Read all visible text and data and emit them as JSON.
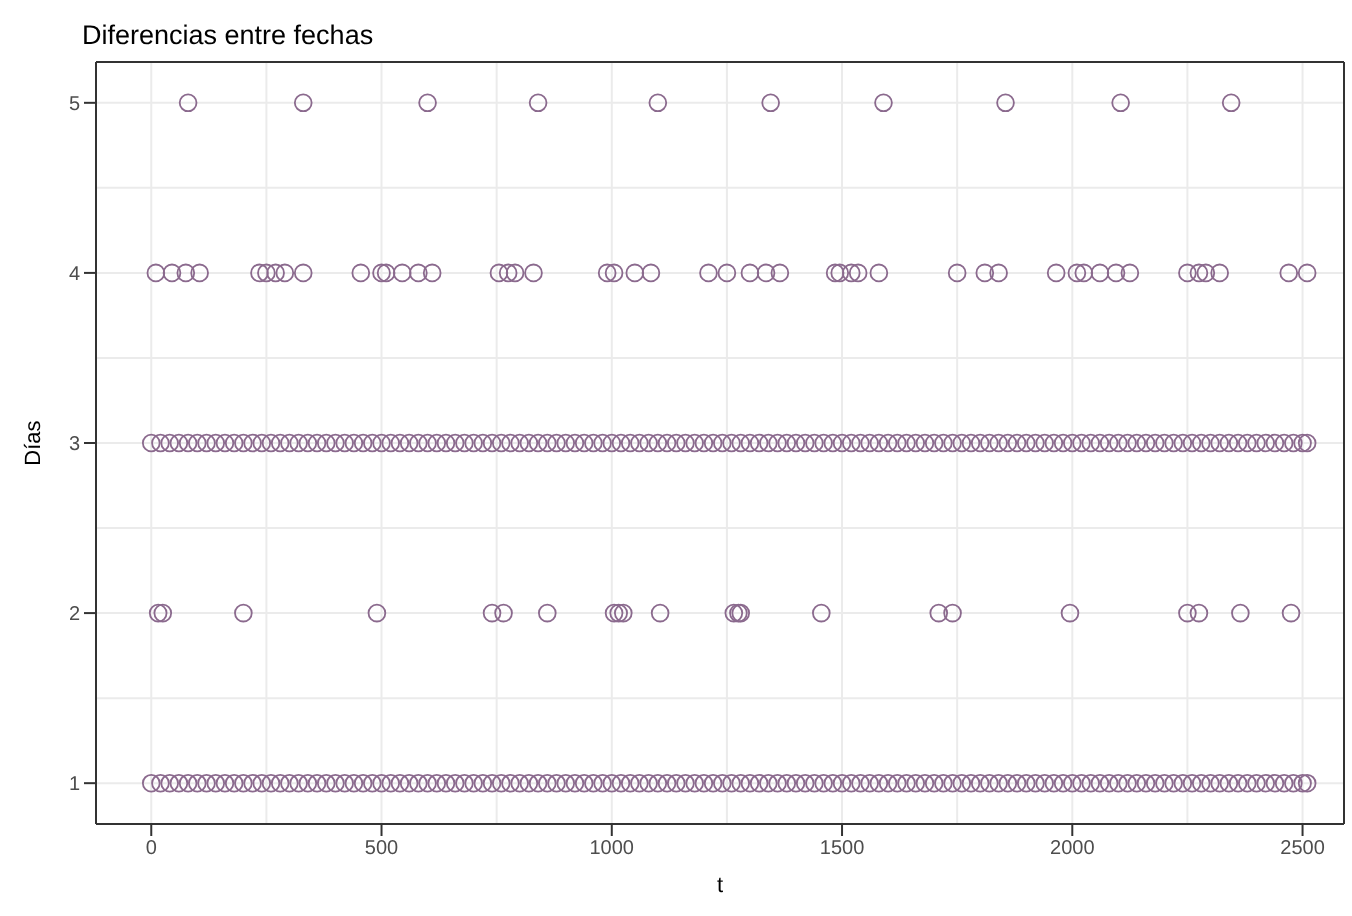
{
  "chart_data": {
    "type": "scatter",
    "title": "Diferencias entre fechas",
    "xlabel": "t",
    "ylabel": "Días",
    "xlim": [
      -120,
      2590
    ],
    "xticks": [
      0,
      500,
      1000,
      1500,
      2000,
      2500
    ],
    "ylim": [
      0.76,
      5.24
    ],
    "yticks": [
      1,
      2,
      3,
      4,
      5
    ],
    "grid": true,
    "marker": "circle",
    "legend": false,
    "series": [
      {
        "color": "#8b6a8e",
        "x": [
          80,
          330,
          600,
          840,
          1100,
          1345,
          1590,
          1855,
          2105,
          2345
        ],
        "values": [
          5,
          5,
          5,
          5,
          5,
          5,
          5,
          5,
          5,
          5
        ]
      },
      {
        "color": "#8b6a8e",
        "x": [
          10,
          45,
          75,
          105,
          235,
          250,
          270,
          290,
          330,
          455,
          500,
          510,
          545,
          580,
          610,
          755,
          775,
          790,
          830,
          990,
          1005,
          1050,
          1085,
          1210,
          1250,
          1300,
          1335,
          1365,
          1485,
          1495,
          1520,
          1535,
          1580,
          1750,
          1810,
          1840,
          1965,
          2010,
          2025,
          2060,
          2095,
          2125,
          2250,
          2275,
          2290,
          2320,
          2470,
          2510
        ],
        "values": [
          4,
          4,
          4,
          4,
          4,
          4,
          4,
          4,
          4,
          4,
          4,
          4,
          4,
          4,
          4,
          4,
          4,
          4,
          4,
          4,
          4,
          4,
          4,
          4,
          4,
          4,
          4,
          4,
          4,
          4,
          4,
          4,
          4,
          4,
          4,
          4,
          4,
          4,
          4,
          4,
          4,
          4,
          4,
          4,
          4,
          4,
          4,
          4
        ]
      },
      {
        "color": "#8b6a8e",
        "x": [
          15,
          25,
          200,
          490,
          740,
          765,
          860,
          1005,
          1015,
          1025,
          1105,
          1265,
          1275,
          1280,
          1455,
          1710,
          1740,
          1995,
          2250,
          2275,
          2365,
          2475
        ],
        "values": [
          2,
          2,
          2,
          2,
          2,
          2,
          2,
          2,
          2,
          2,
          2,
          2,
          2,
          2,
          2,
          2,
          2,
          2,
          2,
          2,
          2,
          2
        ]
      },
      {
        "color": "#8b6a8e",
        "x": [
          0,
          20,
          40,
          60,
          80,
          100,
          120,
          140,
          160,
          180,
          200,
          220,
          240,
          260,
          280,
          300,
          320,
          340,
          360,
          380,
          400,
          420,
          440,
          460,
          480,
          500,
          520,
          540,
          560,
          580,
          600,
          620,
          640,
          660,
          680,
          700,
          720,
          740,
          760,
          780,
          800,
          820,
          840,
          860,
          880,
          900,
          920,
          940,
          960,
          980,
          1000,
          1020,
          1040,
          1060,
          1080,
          1100,
          1120,
          1140,
          1160,
          1180,
          1200,
          1220,
          1240,
          1260,
          1280,
          1300,
          1320,
          1340,
          1360,
          1380,
          1400,
          1420,
          1440,
          1460,
          1480,
          1500,
          1520,
          1540,
          1560,
          1580,
          1600,
          1620,
          1640,
          1660,
          1680,
          1700,
          1720,
          1740,
          1760,
          1780,
          1800,
          1820,
          1840,
          1860,
          1880,
          1900,
          1920,
          1940,
          1960,
          1980,
          2000,
          2020,
          2040,
          2060,
          2080,
          2100,
          2120,
          2140,
          2160,
          2180,
          2200,
          2220,
          2240,
          2260,
          2280,
          2300,
          2320,
          2340,
          2360,
          2380,
          2400,
          2420,
          2440,
          2460,
          2480,
          2500,
          2510
        ],
        "values": [
          3,
          3,
          3,
          3,
          3,
          3,
          3,
          3,
          3,
          3,
          3,
          3,
          3,
          3,
          3,
          3,
          3,
          3,
          3,
          3,
          3,
          3,
          3,
          3,
          3,
          3,
          3,
          3,
          3,
          3,
          3,
          3,
          3,
          3,
          3,
          3,
          3,
          3,
          3,
          3,
          3,
          3,
          3,
          3,
          3,
          3,
          3,
          3,
          3,
          3,
          3,
          3,
          3,
          3,
          3,
          3,
          3,
          3,
          3,
          3,
          3,
          3,
          3,
          3,
          3,
          3,
          3,
          3,
          3,
          3,
          3,
          3,
          3,
          3,
          3,
          3,
          3,
          3,
          3,
          3,
          3,
          3,
          3,
          3,
          3,
          3,
          3,
          3,
          3,
          3,
          3,
          3,
          3,
          3,
          3,
          3,
          3,
          3,
          3,
          3,
          3,
          3,
          3,
          3,
          3,
          3,
          3,
          3,
          3,
          3,
          3,
          3,
          3,
          3,
          3,
          3,
          3,
          3,
          3,
          3,
          3,
          3,
          3,
          3,
          3,
          3,
          3
        ]
      },
      {
        "color": "#8b6a8e",
        "x": [
          0,
          20,
          40,
          60,
          80,
          100,
          120,
          140,
          160,
          180,
          200,
          220,
          240,
          260,
          280,
          300,
          320,
          340,
          360,
          380,
          400,
          420,
          440,
          460,
          480,
          500,
          520,
          540,
          560,
          580,
          600,
          620,
          640,
          660,
          680,
          700,
          720,
          740,
          760,
          780,
          800,
          820,
          840,
          860,
          880,
          900,
          920,
          940,
          960,
          980,
          1000,
          1020,
          1040,
          1060,
          1080,
          1100,
          1120,
          1140,
          1160,
          1180,
          1200,
          1220,
          1240,
          1260,
          1280,
          1300,
          1320,
          1340,
          1360,
          1380,
          1400,
          1420,
          1440,
          1460,
          1480,
          1500,
          1520,
          1540,
          1560,
          1580,
          1600,
          1620,
          1640,
          1660,
          1680,
          1700,
          1720,
          1740,
          1760,
          1780,
          1800,
          1820,
          1840,
          1860,
          1880,
          1900,
          1920,
          1940,
          1960,
          1980,
          2000,
          2020,
          2040,
          2060,
          2080,
          2100,
          2120,
          2140,
          2160,
          2180,
          2200,
          2220,
          2240,
          2260,
          2280,
          2300,
          2320,
          2340,
          2360,
          2380,
          2400,
          2420,
          2440,
          2460,
          2480,
          2500,
          2510
        ],
        "values": [
          1,
          1,
          1,
          1,
          1,
          1,
          1,
          1,
          1,
          1,
          1,
          1,
          1,
          1,
          1,
          1,
          1,
          1,
          1,
          1,
          1,
          1,
          1,
          1,
          1,
          1,
          1,
          1,
          1,
          1,
          1,
          1,
          1,
          1,
          1,
          1,
          1,
          1,
          1,
          1,
          1,
          1,
          1,
          1,
          1,
          1,
          1,
          1,
          1,
          1,
          1,
          1,
          1,
          1,
          1,
          1,
          1,
          1,
          1,
          1,
          1,
          1,
          1,
          1,
          1,
          1,
          1,
          1,
          1,
          1,
          1,
          1,
          1,
          1,
          1,
          1,
          1,
          1,
          1,
          1,
          1,
          1,
          1,
          1,
          1,
          1,
          1,
          1,
          1,
          1,
          1,
          1,
          1,
          1,
          1,
          1,
          1,
          1,
          1,
          1,
          1,
          1,
          1,
          1,
          1,
          1,
          1,
          1,
          1,
          1,
          1,
          1,
          1,
          1,
          1,
          1,
          1,
          1,
          1,
          1,
          1,
          1,
          1,
          1,
          1,
          1,
          1
        ]
      }
    ]
  }
}
